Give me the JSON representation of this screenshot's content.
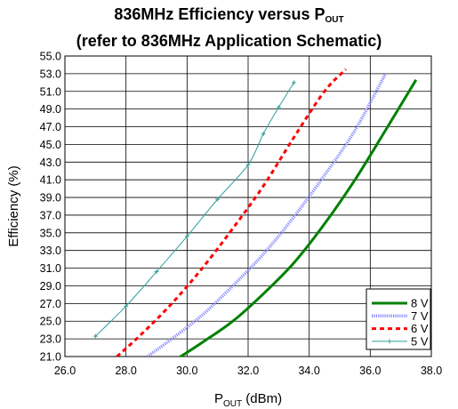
{
  "chart_data": {
    "type": "line",
    "title_line1_main": "836MHz Efficiency versus P",
    "title_line1_sub": "OUT",
    "title_line2": "(refer to 836MHz Application Schematic)",
    "xlabel_main": "P",
    "xlabel_sub": "OUT",
    "xlabel_unit": " (dBm)",
    "ylabel": "Efficiency (%)",
    "xlim": [
      26.0,
      38.0
    ],
    "ylim": [
      21.0,
      55.0
    ],
    "x_ticks": [
      "26.0",
      "28.0",
      "30.0",
      "32.0",
      "34.0",
      "36.0",
      "38.0"
    ],
    "y_ticks": [
      "21.0",
      "23.0",
      "25.0",
      "27.0",
      "29.0",
      "31.0",
      "33.0",
      "35.0",
      "37.0",
      "39.0",
      "41.0",
      "43.0",
      "45.0",
      "47.0",
      "49.0",
      "51.0",
      "53.0",
      "55.0"
    ],
    "grid": "horizontal and vertical",
    "legend_position": "bottom-right",
    "series": [
      {
        "name": "8 V",
        "color": "#008000",
        "style": "solid-thick",
        "points": [
          [
            29.7,
            20.8
          ],
          [
            30.5,
            22.6
          ],
          [
            31.5,
            25.0
          ],
          [
            32.5,
            28.1
          ],
          [
            33.5,
            31.6
          ],
          [
            34.5,
            36.0
          ],
          [
            35.5,
            41.0
          ],
          [
            36.5,
            46.6
          ],
          [
            37.5,
            52.3
          ]
        ]
      },
      {
        "name": "7 V",
        "color": "#8888ff",
        "style": "dotted-band",
        "points": [
          [
            28.7,
            21.0
          ],
          [
            29.5,
            23.0
          ],
          [
            30.5,
            25.7
          ],
          [
            31.5,
            29.0
          ],
          [
            32.5,
            32.6
          ],
          [
            33.5,
            36.8
          ],
          [
            34.5,
            41.5
          ],
          [
            35.5,
            46.6
          ],
          [
            36.5,
            53.0
          ]
        ]
      },
      {
        "name": "6 V",
        "color": "#ff0000",
        "style": "dashed",
        "points": [
          [
            27.7,
            21.0
          ],
          [
            28.5,
            23.5
          ],
          [
            29.5,
            27.0
          ],
          [
            30.5,
            31.0
          ],
          [
            31.5,
            35.5
          ],
          [
            32.5,
            40.3
          ],
          [
            33.5,
            45.8
          ],
          [
            34.5,
            51.0
          ],
          [
            35.2,
            53.5
          ]
        ]
      },
      {
        "name": "5 V",
        "color": "#2f9f9a",
        "style": "thin-markers",
        "points": [
          [
            27.0,
            23.3
          ],
          [
            28.0,
            26.7
          ],
          [
            29.0,
            30.6
          ],
          [
            30.0,
            34.6
          ],
          [
            31.0,
            38.8
          ],
          [
            32.0,
            42.7
          ],
          [
            32.5,
            46.2
          ],
          [
            33.0,
            49.2
          ],
          [
            33.5,
            52.0
          ]
        ]
      }
    ]
  }
}
